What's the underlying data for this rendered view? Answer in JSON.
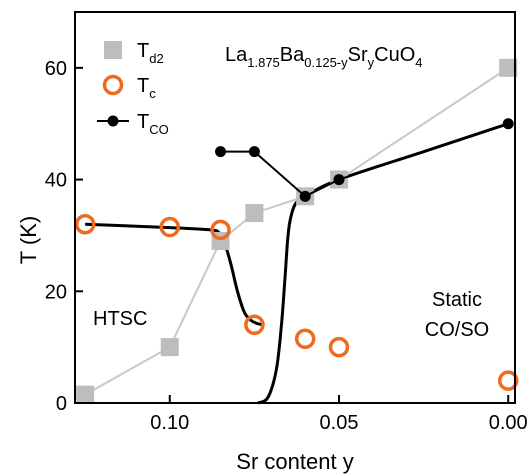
{
  "chart_data": {
    "type": "scatter",
    "xlabel": "Sr content y",
    "ylabel": "T (K)",
    "xlim": [
      0.128,
      -0.002
    ],
    "ylim": [
      0,
      70
    ],
    "x_reversed": true,
    "x_ticks": [
      0.1,
      0.05,
      0.0
    ],
    "x_tick_labels": [
      "0.10",
      "0.05",
      "0.00"
    ],
    "y_ticks": [
      0,
      20,
      40,
      60
    ],
    "y_tick_labels": [
      "0",
      "20",
      "40",
      "60"
    ],
    "grid": false,
    "legend_placement": "top-left",
    "formula": {
      "parts": [
        {
          "t": "La",
          "s": "n"
        },
        {
          "t": "1.875",
          "s": "sub"
        },
        {
          "t": "Ba",
          "s": "n"
        },
        {
          "t": "0.125-y",
          "s": "sub"
        },
        {
          "t": "Sr",
          "s": "n"
        },
        {
          "t": "y",
          "s": "sub"
        },
        {
          "t": "CuO",
          "s": "n"
        },
        {
          "t": "4",
          "s": "sub"
        }
      ]
    },
    "annotations": {
      "htsc": "HTSC",
      "static_line1": "Static",
      "static_line2": "CO/SO"
    },
    "series": [
      {
        "name": "Td2",
        "name_main": "T",
        "name_sub": "d2",
        "marker": "square",
        "color": "#bdbdbd",
        "line_color": "#c8c8c8",
        "x": [
          0.125,
          0.1,
          0.085,
          0.075,
          0.06,
          0.05,
          0.0
        ],
        "y": [
          1.5,
          10,
          29,
          34,
          37,
          40,
          60
        ]
      },
      {
        "name": "Tc",
        "name_main": "T",
        "name_sub": "c",
        "marker": "open-circle",
        "color": "#ee6a1c",
        "x": [
          0.125,
          0.1,
          0.085,
          0.075,
          0.06,
          0.05,
          0.0
        ],
        "y": [
          32,
          31.5,
          31,
          14,
          11.5,
          10,
          4
        ]
      },
      {
        "name": "TCO",
        "name_main": "T",
        "name_sub": "CO",
        "marker": "filled-circle",
        "color": "#000000",
        "x": [
          0.085,
          0.075,
          0.06,
          0.05,
          0.0
        ],
        "y": [
          45,
          45,
          37,
          40,
          50
        ]
      }
    ],
    "guide_curves": [
      {
        "name": "Tc trend",
        "color": "#000000",
        "x": [
          0.125,
          0.1,
          0.088,
          0.0855,
          0.084,
          0.082,
          0.08,
          0.078,
          0.076,
          0.074,
          0.072
        ],
        "y": [
          32,
          31.4,
          31,
          30.5,
          29,
          25,
          20,
          16.3,
          14.8,
          14.2,
          14
        ]
      },
      {
        "name": "TCO onset",
        "color": "#000000",
        "x": [
          0.074,
          0.071,
          0.0685,
          0.067,
          0.066,
          0.0652,
          0.0645,
          0.063,
          0.06,
          0.05,
          0.025,
          0.0
        ],
        "y": [
          0,
          1,
          6,
          14,
          22,
          29,
          32.5,
          35.5,
          37,
          40,
          45,
          50
        ]
      }
    ]
  }
}
